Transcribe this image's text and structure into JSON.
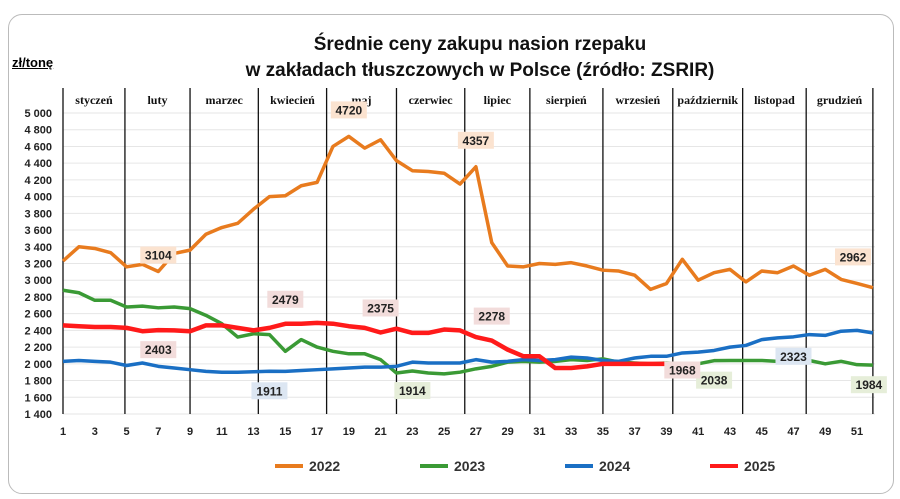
{
  "chart_data": {
    "type": "line",
    "title": [
      "Średnie ceny zakupu nasion rzepaku",
      "w zakładach tłuszczowych w Polsce  (źródło: ZSRIR)"
    ],
    "ylabel": "zł/tonę",
    "xlabel": "",
    "ylim": [
      1400,
      5000
    ],
    "yticks": [
      "1 400",
      "1 600",
      "1 800",
      "2 000",
      "2 200",
      "2 400",
      "2 600",
      "2 800",
      "3 000",
      "3 200",
      "3 400",
      "3 600",
      "3 800",
      "4 000",
      "4 200",
      "4 400",
      "4 600",
      "4 800",
      "5 000"
    ],
    "xlim": [
      1,
      52
    ],
    "xticks": [
      "1",
      "3",
      "5",
      "7",
      "9",
      "11",
      "13",
      "15",
      "17",
      "19",
      "21",
      "23",
      "25",
      "27",
      "29",
      "31",
      "33",
      "35",
      "37",
      "39",
      "41",
      "43",
      "45",
      "47",
      "49",
      "51"
    ],
    "grid": true,
    "legend": "bottom",
    "months": [
      {
        "label": "styczeń",
        "start": 1,
        "end": 4.9
      },
      {
        "label": "luty",
        "start": 4.9,
        "end": 9
      },
      {
        "label": "marzec",
        "start": 9,
        "end": 13.3
      },
      {
        "label": "kwiecień",
        "start": 13.3,
        "end": 17.6
      },
      {
        "label": "maj",
        "start": 17.6,
        "end": 22
      },
      {
        "label": "czerwiec",
        "start": 22,
        "end": 26.3
      },
      {
        "label": "lipiec",
        "start": 26.3,
        "end": 30.4
      },
      {
        "label": "sierpień",
        "start": 30.4,
        "end": 35
      },
      {
        "label": "wrzesień",
        "start": 35,
        "end": 39.4
      },
      {
        "label": "październik",
        "start": 39.4,
        "end": 43.8
      },
      {
        "label": "listopad",
        "start": 43.8,
        "end": 47.8
      },
      {
        "label": "grudzień",
        "start": 47.8,
        "end": 52
      }
    ],
    "series": [
      {
        "name": "2022",
        "color": "#E87B1E",
        "values": [
          3230,
          3400,
          3380,
          3330,
          3160,
          3190,
          3104,
          3320,
          3360,
          3550,
          3630,
          3680,
          3850,
          4000,
          4010,
          4130,
          4170,
          4600,
          4720,
          4580,
          4680,
          4430,
          4310,
          4300,
          4280,
          4150,
          4357,
          3450,
          3170,
          3160,
          3200,
          3190,
          3210,
          3170,
          3120,
          3110,
          3060,
          2890,
          2960,
          3250,
          3000,
          3090,
          3130,
          2980,
          3110,
          3090,
          3170,
          3060,
          3130,
          3010,
          2962,
          2910
        ],
        "labels": [
          {
            "week": 7,
            "value": "3104"
          },
          {
            "week": 19,
            "value": "4720"
          },
          {
            "week": 27,
            "value": "4357"
          },
          {
            "week": 51,
            "value": "2962"
          }
        ]
      },
      {
        "name": "2023",
        "color": "#3A9A35",
        "values": [
          2880,
          2850,
          2760,
          2760,
          2680,
          2690,
          2670,
          2680,
          2660,
          2580,
          2480,
          2320,
          2360,
          2350,
          2150,
          2290,
          2200,
          2150,
          2120,
          2120,
          2050,
          1890,
          1914,
          1890,
          1880,
          1900,
          1940,
          1970,
          2020,
          2030,
          2020,
          2030,
          2050,
          2040,
          2060,
          2020,
          2010,
          2000,
          2010,
          2000,
          2000,
          2038,
          2040,
          2040,
          2040,
          2030,
          2030,
          2040,
          2000,
          2030,
          1990,
          1984
        ],
        "labels": [
          {
            "week": 23,
            "value": "1914"
          },
          {
            "week": 42,
            "value": "2038"
          },
          {
            "week": 52,
            "value": "1984"
          }
        ]
      },
      {
        "name": "2024",
        "color": "#1A6FC4",
        "values": [
          2030,
          2040,
          2030,
          2020,
          1980,
          2010,
          1970,
          1950,
          1930,
          1910,
          1900,
          1900,
          1905,
          1911,
          1910,
          1920,
          1930,
          1940,
          1950,
          1960,
          1960,
          1970,
          2020,
          2010,
          2010,
          2010,
          2050,
          2020,
          2030,
          2050,
          2040,
          2050,
          2080,
          2070,
          2040,
          2030,
          2070,
          2090,
          2090,
          2130,
          2140,
          2160,
          2200,
          2220,
          2290,
          2310,
          2323,
          2350,
          2340,
          2390,
          2400,
          2370
        ],
        "labels": [
          {
            "week": 14,
            "value": "1911"
          },
          {
            "week": 47,
            "value": "2323"
          }
        ]
      },
      {
        "name": "2025",
        "color": "#FF1A1A",
        "values": [
          2460,
          2450,
          2440,
          2440,
          2430,
          2390,
          2403,
          2400,
          2390,
          2460,
          2460,
          2430,
          2400,
          2430,
          2479,
          2480,
          2490,
          2480,
          2450,
          2430,
          2375,
          2420,
          2370,
          2370,
          2410,
          2400,
          2320,
          2278,
          2170,
          2090,
          2090,
          1950,
          1950,
          1970,
          2000,
          2000,
          2000,
          2000,
          2000,
          1968
        ],
        "labels": [
          {
            "week": 7,
            "value": "2403"
          },
          {
            "week": 15,
            "value": "2479"
          },
          {
            "week": 21,
            "value": "2375"
          },
          {
            "week": 28,
            "value": "2278"
          },
          {
            "week": 40,
            "value": "1968"
          }
        ]
      }
    ]
  }
}
